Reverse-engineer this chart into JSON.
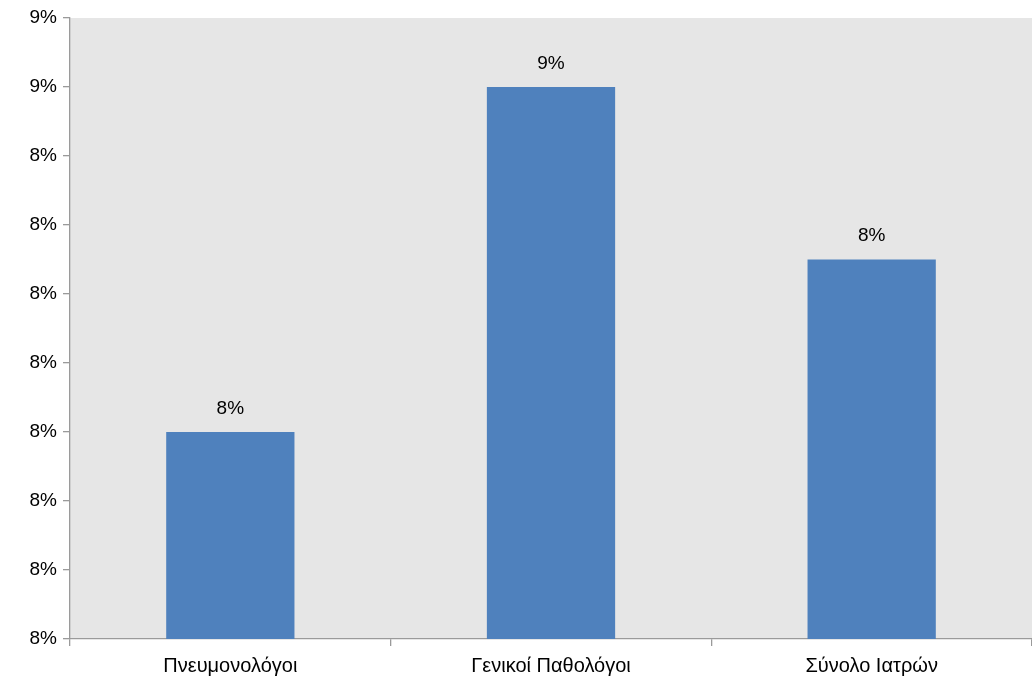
{
  "chart_data": {
    "type": "bar",
    "categories": [
      "Πνευμονολόγοι",
      "Γενικοί Παθολόγοι",
      "Σύνολο Ιατρών"
    ],
    "values": [
      8.0,
      8.5,
      8.25
    ],
    "color": "#4f81bd",
    "value_labels": [
      "8%",
      "9%",
      "8%"
    ],
    "ylim": [
      7.7,
      8.6
    ],
    "yticks": [
      {
        "value": 7.7,
        "label": "8%"
      },
      {
        "value": 7.8,
        "label": "8%"
      },
      {
        "value": 7.9,
        "label": "8%"
      },
      {
        "value": 8.0,
        "label": "8%"
      },
      {
        "value": 8.1,
        "label": "8%"
      },
      {
        "value": 8.2,
        "label": "8%"
      },
      {
        "value": 8.3,
        "label": "8%"
      },
      {
        "value": 8.4,
        "label": "8%"
      },
      {
        "value": 8.5,
        "label": "9%"
      },
      {
        "value": 8.6,
        "label": "9%"
      }
    ]
  }
}
